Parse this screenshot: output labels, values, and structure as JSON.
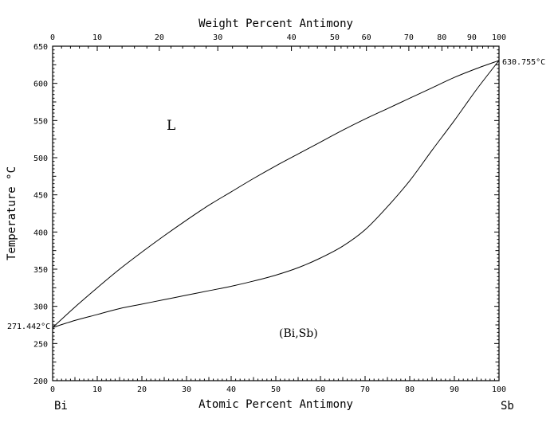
{
  "chart_data": {
    "type": "line",
    "title": "",
    "xlabel": "Atomic Percent Antimony",
    "x2label": "Weight Percent Antimony",
    "ylabel": "Temperature °C",
    "xlim": [
      0,
      100
    ],
    "ylim": [
      200,
      650
    ],
    "x_ticks": [
      "0",
      "10",
      "20",
      "30",
      "40",
      "50",
      "60",
      "70",
      "80",
      "90",
      "100"
    ],
    "y_ticks": [
      "200",
      "250",
      "300",
      "350",
      "400",
      "450",
      "500",
      "550",
      "600",
      "650"
    ],
    "top_axis": {
      "ticks": [
        {
          "wt": 0,
          "at": 0,
          "label": "0"
        },
        {
          "wt": 10,
          "at": 10.0,
          "label": "10"
        },
        {
          "wt": 20,
          "at": 23.9,
          "label": "20"
        },
        {
          "wt": 30,
          "at": 37.0,
          "label": "30"
        },
        {
          "wt": 40,
          "at": 53.5,
          "label": "40"
        },
        {
          "wt": 50,
          "at": 63.2,
          "label": "50"
        },
        {
          "wt": 60,
          "at": 70.3,
          "label": "60"
        },
        {
          "wt": 70,
          "at": 79.8,
          "label": "70"
        },
        {
          "wt": 80,
          "at": 87.2,
          "label": "80"
        },
        {
          "wt": 90,
          "at": 93.9,
          "label": "90"
        },
        {
          "wt": 100,
          "at": 100,
          "label": "100"
        }
      ]
    },
    "series": [
      {
        "x": [
          0,
          5,
          10,
          15,
          20,
          25,
          30,
          35,
          40,
          45,
          50,
          55,
          60,
          65,
          70,
          75,
          80,
          85,
          90,
          95,
          100
        ],
        "y": [
          271.442,
          299,
          325,
          350,
          373,
          395,
          416,
          436,
          454,
          472,
          489,
          505,
          521,
          537,
          552,
          566,
          580,
          594,
          608,
          620,
          630.755
        ]
      },
      {
        "x": [
          0,
          5,
          10,
          15,
          20,
          25,
          30,
          35,
          40,
          45,
          50,
          55,
          60,
          65,
          70,
          75,
          80,
          85,
          90,
          95,
          100
        ],
        "y": [
          271.442,
          281,
          289,
          297,
          303,
          309,
          315,
          321,
          327,
          334,
          342,
          352,
          365,
          381,
          403,
          434,
          469,
          510,
          550,
          592,
          630.755
        ]
      }
    ],
    "annotations": {
      "bi_melting": "271.442°C",
      "sb_melting": "630.755°C",
      "liquid_label": "L",
      "solid_label": "(Bi,Sb)",
      "left_element": "Bi",
      "right_element": "Sb"
    },
    "grid": false
  }
}
